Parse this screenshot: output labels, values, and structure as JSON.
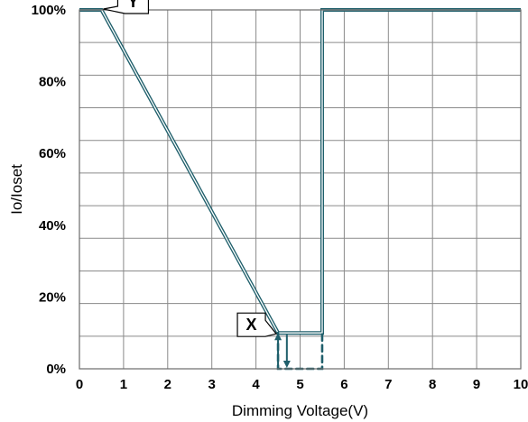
{
  "chart_data": {
    "type": "line",
    "title": "",
    "xlabel": "Dimming Voltage(V)",
    "ylabel": "Io/Ioset",
    "xlim": [
      0,
      10
    ],
    "ylim": [
      0,
      100
    ],
    "x_ticks": [
      "0",
      "1",
      "2",
      "3",
      "4",
      "5",
      "6",
      "7",
      "8",
      "9",
      "10"
    ],
    "y_ticks": [
      "0%",
      "20%",
      "40%",
      "60%",
      "80%",
      "100%"
    ],
    "y_tick_values": [
      0,
      20,
      40,
      60,
      80,
      100
    ],
    "grid": true,
    "line_color": "#1f5f6b",
    "series": [
      {
        "values": [
          {
            "x": 0,
            "y": 100
          },
          {
            "x": 0.5,
            "y": 100
          },
          {
            "x": 4.5,
            "y": 10
          },
          {
            "x": 5.5,
            "y": 10
          },
          {
            "x": 5.5,
            "y": 100
          },
          {
            "x": 10,
            "y": 100
          }
        ]
      }
    ],
    "hysteresis_marker": {
      "x_range": [
        4.5,
        5.5
      ],
      "y_range": [
        0,
        10
      ],
      "arrow_up_x": 4.5,
      "arrow_down_x": 4.7
    },
    "annotations": [
      {
        "text": "Y",
        "point": {
          "x": 0.5,
          "y": 100
        }
      },
      {
        "text": "X",
        "point": {
          "x": 4.5,
          "y": 10
        }
      }
    ]
  }
}
